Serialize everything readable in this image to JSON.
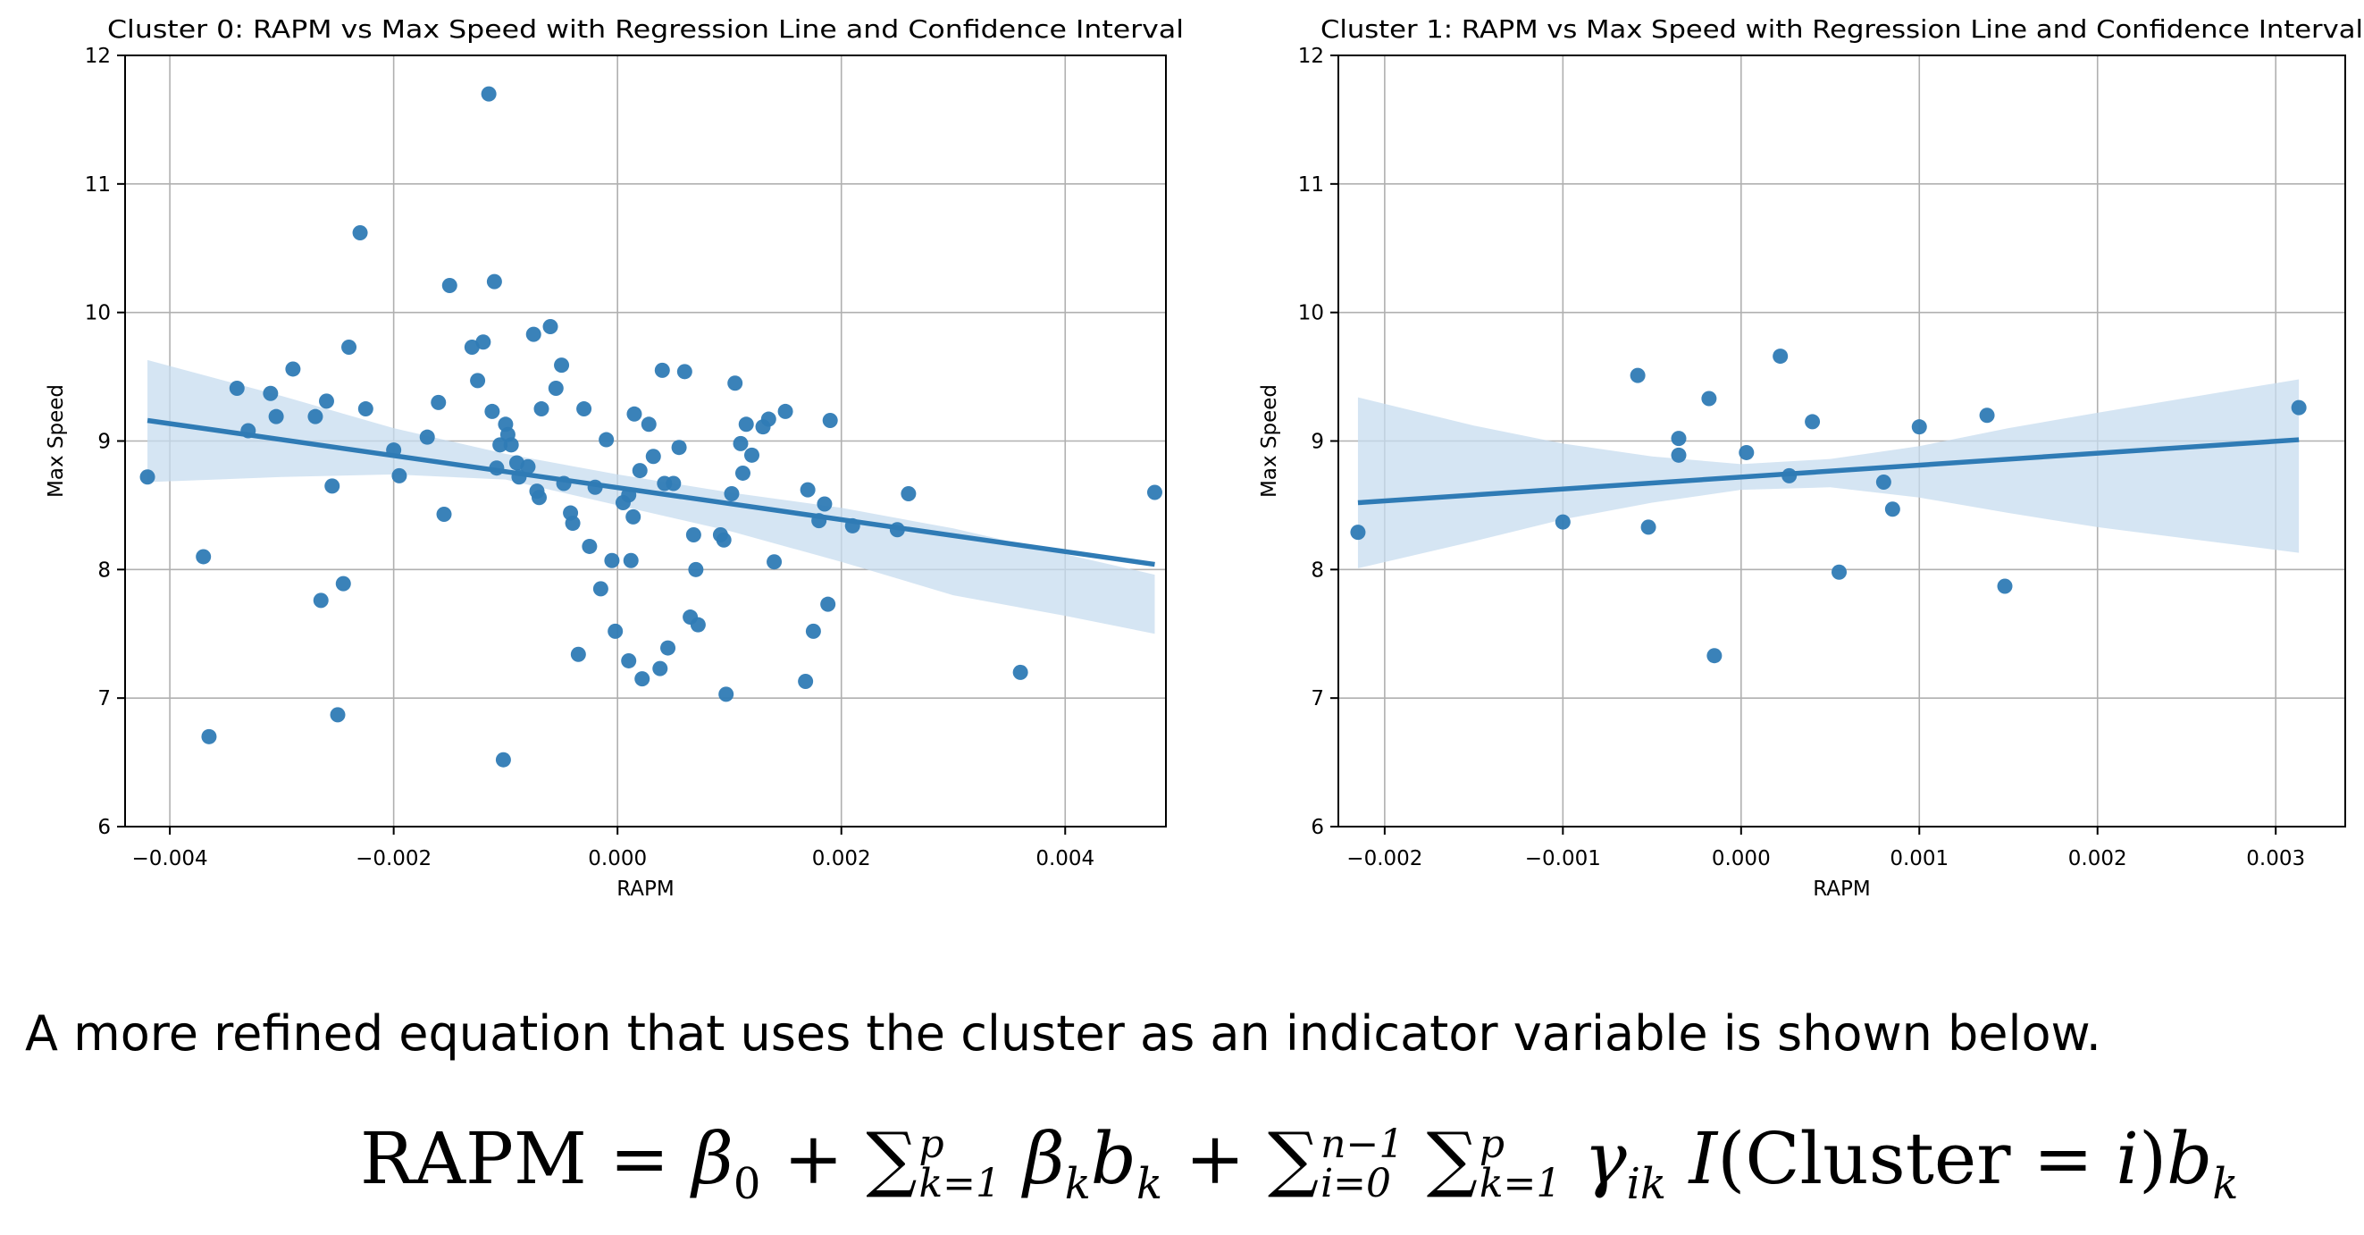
{
  "chart_data": [
    {
      "type": "scatter",
      "title": "Cluster 0: RAPM vs Max Speed with Regression Line and Confidence Interval",
      "xlabel": "RAPM",
      "ylabel": "Max Speed",
      "xlim": [
        -0.0044,
        0.0049
      ],
      "ylim": [
        6,
        12
      ],
      "xticks": [
        -0.004,
        -0.002,
        0.0,
        0.002,
        0.004
      ],
      "xtick_labels": [
        "−0.004",
        "−0.002",
        "0.000",
        "0.002",
        "0.004"
      ],
      "yticks": [
        6,
        7,
        8,
        9,
        10,
        11,
        12
      ],
      "ytick_labels": [
        "6",
        "7",
        "8",
        "9",
        "10",
        "11",
        "12"
      ],
      "grid": true,
      "color": "#2f7bb5",
      "band_color": "#c7dcef",
      "regression": {
        "x": [
          -0.0042,
          0.0048
        ],
        "y": [
          9.16,
          8.04
        ]
      },
      "ci_upper": [
        [
          -0.0042,
          9.63
        ],
        [
          -0.003,
          9.35
        ],
        [
          -0.002,
          9.1
        ],
        [
          -0.001,
          8.9
        ],
        [
          0.0,
          8.74
        ],
        [
          0.001,
          8.6
        ],
        [
          0.002,
          8.48
        ],
        [
          0.003,
          8.32
        ],
        [
          0.004,
          8.12
        ],
        [
          0.0048,
          7.96
        ]
      ],
      "ci_lower": [
        [
          -0.0042,
          8.68
        ],
        [
          -0.003,
          8.72
        ],
        [
          -0.002,
          8.74
        ],
        [
          -0.001,
          8.7
        ],
        [
          0.0,
          8.5
        ],
        [
          0.001,
          8.3
        ],
        [
          0.002,
          8.06
        ],
        [
          0.003,
          7.8
        ],
        [
          0.004,
          7.64
        ],
        [
          0.0048,
          7.5
        ]
      ],
      "points": [
        [
          -0.0042,
          8.72
        ],
        [
          -0.0037,
          8.1
        ],
        [
          -0.00365,
          6.7
        ],
        [
          -0.0034,
          9.41
        ],
        [
          -0.0033,
          9.08
        ],
        [
          -0.0031,
          9.37
        ],
        [
          -0.00305,
          9.19
        ],
        [
          -0.0029,
          9.56
        ],
        [
          -0.0027,
          9.19
        ],
        [
          -0.00265,
          7.76
        ],
        [
          -0.0026,
          9.31
        ],
        [
          -0.00255,
          8.65
        ],
        [
          -0.0025,
          6.87
        ],
        [
          -0.00245,
          7.89
        ],
        [
          -0.0024,
          9.73
        ],
        [
          -0.0023,
          10.62
        ],
        [
          -0.00225,
          9.25
        ],
        [
          -0.002,
          8.93
        ],
        [
          -0.00195,
          8.73
        ],
        [
          -0.0017,
          9.03
        ],
        [
          -0.0016,
          9.3
        ],
        [
          -0.00155,
          8.43
        ],
        [
          -0.0015,
          10.21
        ],
        [
          -0.0013,
          9.73
        ],
        [
          -0.00125,
          9.47
        ],
        [
          -0.0012,
          9.77
        ],
        [
          -0.00115,
          11.7
        ],
        [
          -0.0011,
          10.24
        ],
        [
          -0.00112,
          9.23
        ],
        [
          -0.00108,
          8.79
        ],
        [
          -0.00105,
          8.97
        ],
        [
          -0.001,
          9.13
        ],
        [
          -0.00098,
          9.05
        ],
        [
          -0.00102,
          6.52
        ],
        [
          -0.00095,
          8.97
        ],
        [
          -0.0009,
          8.83
        ],
        [
          -0.00088,
          8.72
        ],
        [
          -0.0008,
          8.8
        ],
        [
          -0.00075,
          9.83
        ],
        [
          -0.00072,
          8.61
        ],
        [
          -0.0007,
          8.56
        ],
        [
          -0.00068,
          9.25
        ],
        [
          -0.0006,
          9.89
        ],
        [
          -0.00055,
          9.41
        ],
        [
          -0.0005,
          9.59
        ],
        [
          -0.00048,
          8.67
        ],
        [
          -0.00042,
          8.44
        ],
        [
          -0.0004,
          8.36
        ],
        [
          -0.00035,
          7.34
        ],
        [
          -0.0003,
          9.25
        ],
        [
          -0.00025,
          8.18
        ],
        [
          -0.0002,
          8.64
        ],
        [
          -0.00015,
          7.85
        ],
        [
          -0.0001,
          9.01
        ],
        [
          -5e-05,
          8.07
        ],
        [
          -2e-05,
          7.52
        ],
        [
          5e-05,
          8.52
        ],
        [
          0.0001,
          8.58
        ],
        [
          0.00012,
          8.07
        ],
        [
          0.00014,
          8.41
        ],
        [
          0.0001,
          7.29
        ],
        [
          0.00015,
          9.21
        ],
        [
          0.0002,
          8.77
        ],
        [
          0.00022,
          7.15
        ],
        [
          0.00028,
          9.13
        ],
        [
          0.00032,
          8.88
        ],
        [
          0.00038,
          7.23
        ],
        [
          0.0004,
          9.55
        ],
        [
          0.00042,
          8.67
        ],
        [
          0.00045,
          7.39
        ],
        [
          0.0005,
          8.67
        ],
        [
          0.00055,
          8.95
        ],
        [
          0.0006,
          9.54
        ],
        [
          0.00065,
          7.63
        ],
        [
          0.00068,
          8.27
        ],
        [
          0.0007,
          8.0
        ],
        [
          0.00072,
          7.57
        ],
        [
          0.00092,
          8.27
        ],
        [
          0.00095,
          8.23
        ],
        [
          0.00097,
          7.03
        ],
        [
          0.00102,
          8.59
        ],
        [
          0.00105,
          9.45
        ],
        [
          0.0011,
          8.98
        ],
        [
          0.00112,
          8.75
        ],
        [
          0.00115,
          9.13
        ],
        [
          0.0012,
          8.89
        ],
        [
          0.0013,
          9.11
        ],
        [
          0.00135,
          9.17
        ],
        [
          0.0014,
          8.06
        ],
        [
          0.0015,
          9.23
        ],
        [
          0.0017,
          8.62
        ],
        [
          0.00168,
          7.13
        ],
        [
          0.00175,
          7.52
        ],
        [
          0.0018,
          8.38
        ],
        [
          0.00185,
          8.51
        ],
        [
          0.0019,
          9.16
        ],
        [
          0.00188,
          7.73
        ],
        [
          0.0021,
          8.34
        ],
        [
          0.0025,
          8.31
        ],
        [
          0.0026,
          8.59
        ],
        [
          0.0036,
          7.2
        ],
        [
          0.0048,
          8.6
        ]
      ]
    },
    {
      "type": "scatter",
      "title": "Cluster 1: RAPM vs Max Speed with Regression Line and Confidence Interval",
      "xlabel": "RAPM",
      "ylabel": "Max Speed",
      "xlim": [
        -0.00226,
        0.00339
      ],
      "ylim": [
        6,
        12
      ],
      "xticks": [
        -0.002,
        -0.001,
        0.0,
        0.001,
        0.002,
        0.003
      ],
      "xtick_labels": [
        "−0.002",
        "−0.001",
        "0.000",
        "0.001",
        "0.002",
        "0.003"
      ],
      "yticks": [
        6,
        7,
        8,
        9,
        10,
        11,
        12
      ],
      "ytick_labels": [
        "6",
        "7",
        "8",
        "9",
        "10",
        "11",
        "12"
      ],
      "grid": true,
      "color": "#2f7bb5",
      "band_color": "#c7dcef",
      "regression": {
        "x": [
          -0.00215,
          0.00313
        ],
        "y": [
          8.52,
          9.01
        ]
      },
      "ci_upper": [
        [
          -0.00215,
          9.34
        ],
        [
          -0.0015,
          9.12
        ],
        [
          -0.001,
          8.98
        ],
        [
          -0.0005,
          8.88
        ],
        [
          0.0,
          8.82
        ],
        [
          0.0005,
          8.86
        ],
        [
          0.001,
          8.96
        ],
        [
          0.0015,
          9.1
        ],
        [
          0.002,
          9.22
        ],
        [
          0.00313,
          9.48
        ]
      ],
      "ci_lower": [
        [
          -0.00215,
          8.01
        ],
        [
          -0.0015,
          8.22
        ],
        [
          -0.001,
          8.39
        ],
        [
          -0.0005,
          8.52
        ],
        [
          0.0,
          8.62
        ],
        [
          0.0005,
          8.64
        ],
        [
          0.001,
          8.56
        ],
        [
          0.0015,
          8.44
        ],
        [
          0.002,
          8.33
        ],
        [
          0.00313,
          8.13
        ]
      ],
      "points": [
        [
          -0.00215,
          8.29
        ],
        [
          -0.001,
          8.37
        ],
        [
          -0.00058,
          9.51
        ],
        [
          -0.00052,
          8.33
        ],
        [
          -0.00035,
          9.02
        ],
        [
          -0.00035,
          8.89
        ],
        [
          -0.00018,
          9.33
        ],
        [
          -0.00015,
          7.33
        ],
        [
          3e-05,
          8.91
        ],
        [
          0.00022,
          9.66
        ],
        [
          0.00027,
          8.73
        ],
        [
          0.0004,
          9.15
        ],
        [
          0.00055,
          7.98
        ],
        [
          0.0008,
          8.68
        ],
        [
          0.00085,
          8.47
        ],
        [
          0.001,
          9.11
        ],
        [
          0.00138,
          9.2
        ],
        [
          0.00148,
          7.87
        ],
        [
          0.00313,
          9.26
        ]
      ]
    }
  ],
  "caption": "A more refined equation that uses the cluster as an indicator variable is shown below.",
  "equation": {
    "lhs": "RAPM",
    "eq": "=",
    "t1": "β",
    "t1_sub": "0",
    "plus1": "+",
    "sum1_up": "p",
    "sum1_lo": "k=1",
    "t2": "β",
    "t2_sub": "k",
    "t2_b": "b",
    "t2_bsub": "k",
    "plus2": "+",
    "sum2_up": "n−1",
    "sum2_lo": "i=0",
    "sum3_up": "p",
    "sum3_lo": "k=1",
    "gamma": "γ",
    "gamma_sub": "ik",
    "ind": "I",
    "paren_open": "(",
    "cluster": "Cluster",
    "eq2": "=",
    "i_var": "i",
    "paren_close": ")",
    "tb": "b",
    "tb_sub": "k"
  }
}
